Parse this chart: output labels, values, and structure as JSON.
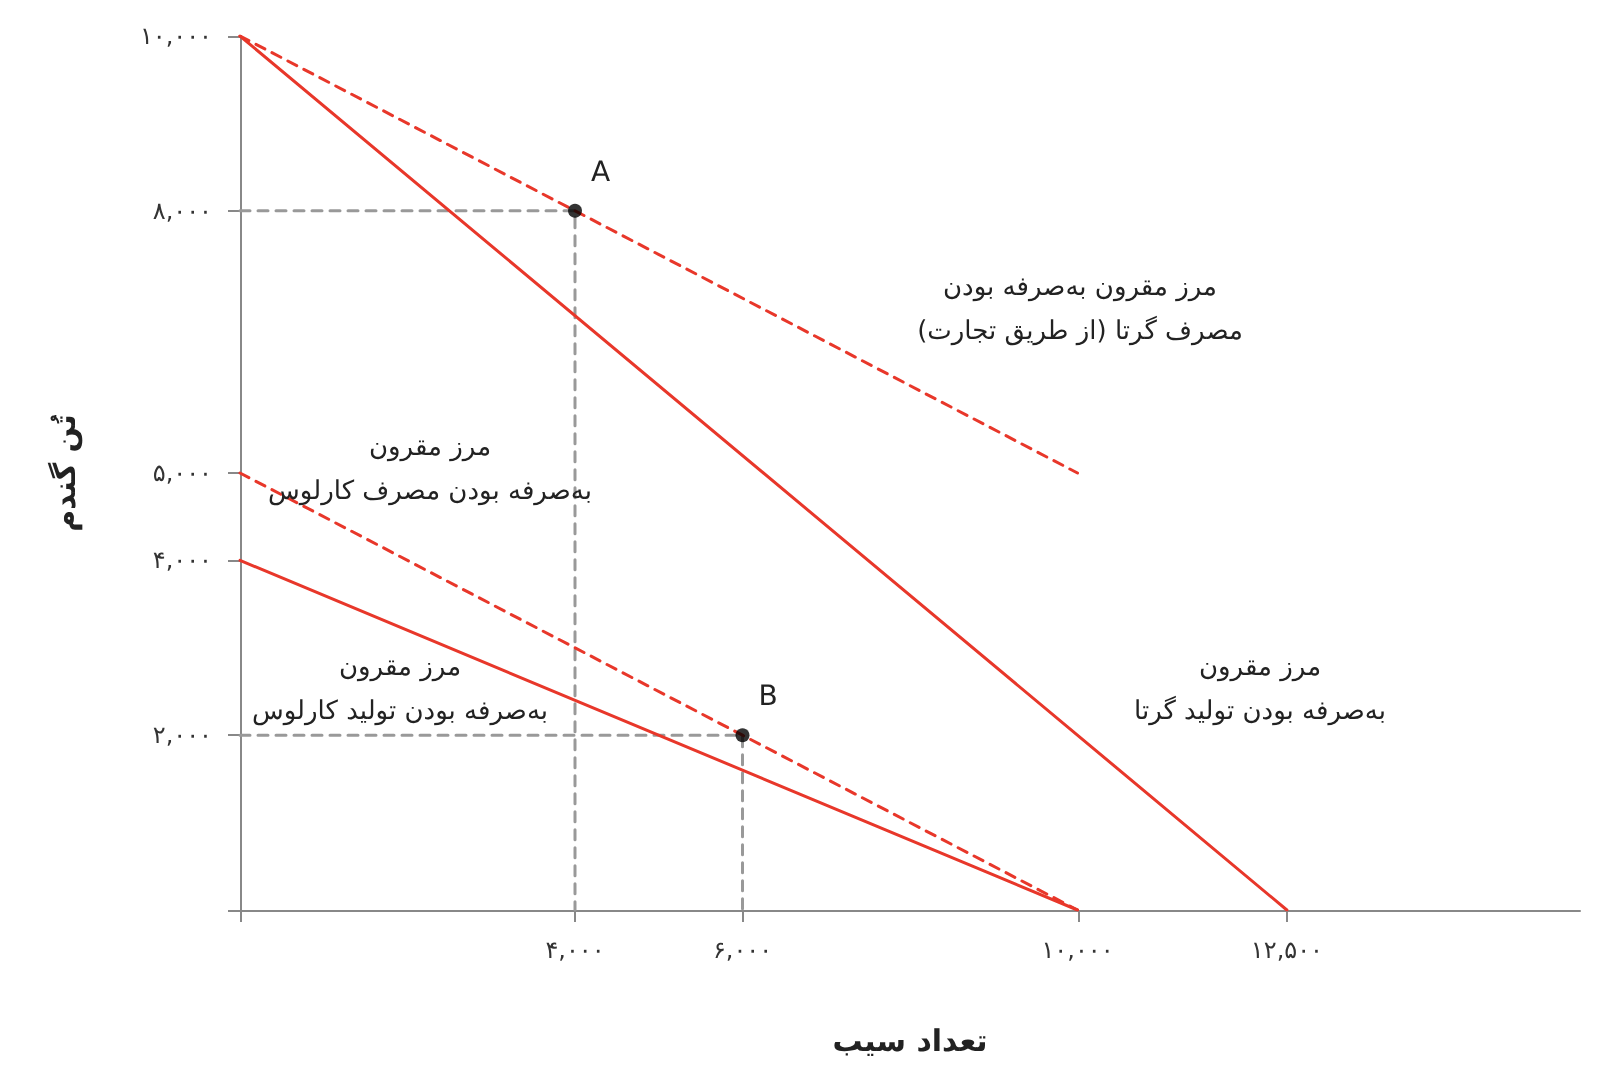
{
  "chart_data": {
    "type": "line",
    "xlabel": "تعداد سیب",
    "ylabel": "تُن گندم",
    "xlim": [
      0,
      16000
    ],
    "ylim": [
      0,
      10000
    ],
    "xticks": [
      {
        "value": 0,
        "label": null
      },
      {
        "value": 4000,
        "label": "۴,۰۰۰"
      },
      {
        "value": 6000,
        "label": "۶,۰۰۰"
      },
      {
        "value": 10000,
        "label": "۱۰,۰۰۰"
      },
      {
        "value": 12500,
        "label": "۱۲,۵۰۰"
      }
    ],
    "yticks": [
      {
        "value": 0,
        "label": null
      },
      {
        "value": 2000,
        "label": "۲,۰۰۰"
      },
      {
        "value": 4000,
        "label": "۴,۰۰۰"
      },
      {
        "value": 5000,
        "label": "۵,۰۰۰"
      },
      {
        "value": 8000,
        "label": "۸,۰۰۰"
      },
      {
        "value": 10000,
        "label": "۱۰,۰۰۰"
      }
    ],
    "grid": false,
    "marker": "none",
    "series": [
      {
        "color": "#999999",
        "line_style": "dashed",
        "x": [
          0,
          4000,
          4000
        ],
        "values": [
          8000,
          8000,
          0
        ]
      },
      {
        "color": "#999999",
        "line_style": "dashed",
        "x": [
          0,
          6000,
          6000
        ],
        "values": [
          2000,
          2000,
          0
        ]
      },
      {
        "color": "#e8372a",
        "line_style": "solid",
        "x": [
          0,
          12500
        ],
        "values": [
          10000,
          0
        ]
      },
      {
        "color": "#e8372a",
        "line_style": "dashed",
        "x": [
          0,
          4000,
          10000
        ],
        "values": [
          10000,
          8000,
          5000
        ]
      },
      {
        "color": "#e8372a",
        "line_style": "dashed",
        "x": [
          0,
          6000,
          10000
        ],
        "values": [
          5000,
          2000,
          0
        ]
      },
      {
        "color": "#e8372a",
        "line_style": "solid",
        "x": [
          0,
          10000
        ],
        "values": [
          4000,
          0
        ]
      },
      {
        "type": "scatter",
        "color": "#000000",
        "marker": "circle",
        "x": [
          4000,
          6000
        ],
        "values": [
          8000,
          2000
        ]
      }
    ],
    "annotations": [
      {
        "text": "A",
        "x": 4000,
        "y": 8000
      },
      {
        "text": "B",
        "x": 6000,
        "y": 2000
      },
      "مرز مقرون به‌صرفه بودن\nمصرف گرتا (از طریق تجارت)",
      "مرز مقرون\nبه‌صرفه بودن مصرف کارلوس",
      "مرز مقرون\nبه‌صرفه بودن تولید کارلوس",
      "مرز مقرون\nبه‌صرفه بودن تولید گرتا"
    ]
  }
}
